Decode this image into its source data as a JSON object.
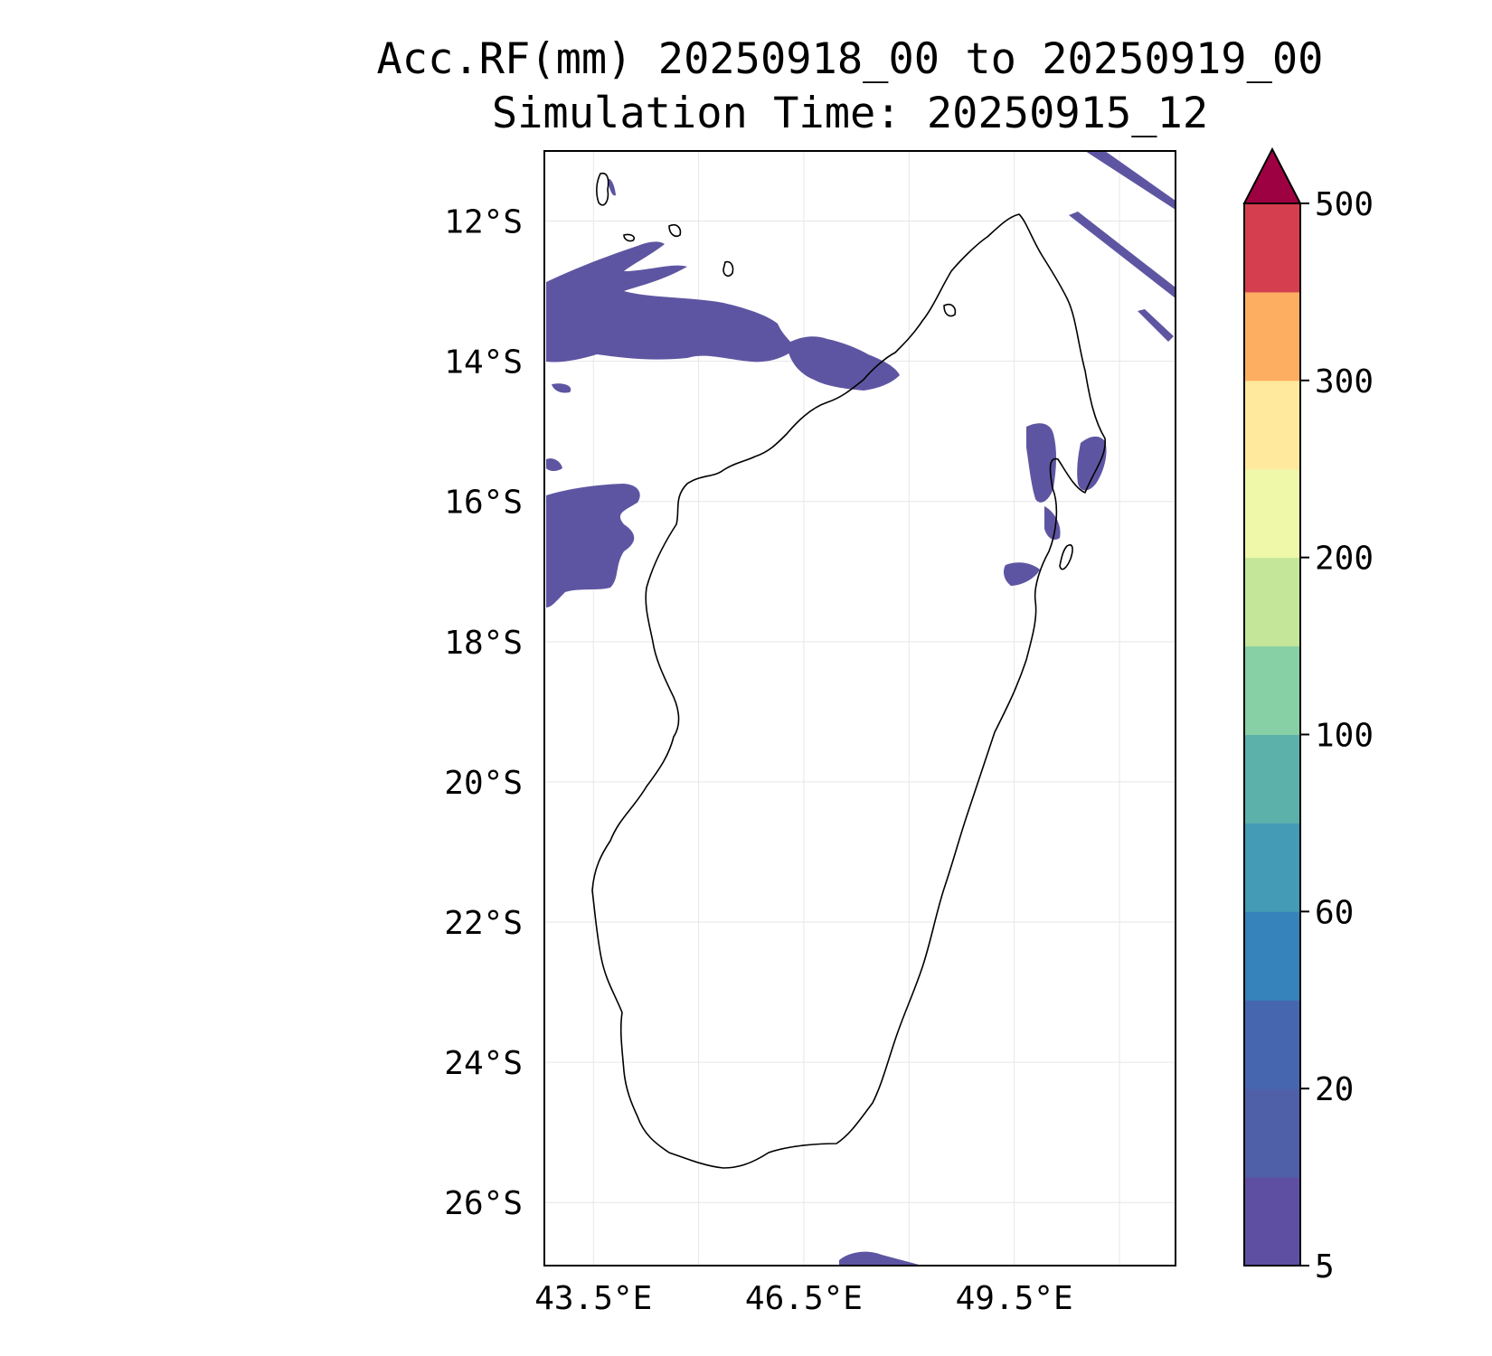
{
  "title": {
    "line1": "Acc.RF(mm) 20250918_00 to 20250919_00",
    "line2": "Simulation Time: 20250915_12"
  },
  "map": {
    "lon_range": [
      42.8,
      51.8
    ],
    "lat_range": [
      -26.9,
      -11.0
    ],
    "x_ticks": [
      {
        "value": 43.5,
        "label": "43.5°E"
      },
      {
        "value": 46.5,
        "label": "46.5°E"
      },
      {
        "value": 49.5,
        "label": "49.5°E"
      }
    ],
    "y_ticks": [
      {
        "value": -12,
        "label": "12°S"
      },
      {
        "value": -14,
        "label": "14°S"
      },
      {
        "value": -16,
        "label": "16°S"
      },
      {
        "value": -18,
        "label": "18°S"
      },
      {
        "value": -20,
        "label": "20°S"
      },
      {
        "value": -22,
        "label": "22°S"
      },
      {
        "value": -24,
        "label": "24°S"
      },
      {
        "value": -26,
        "label": "26°S"
      }
    ],
    "grid_lons": [
      43.5,
      45.0,
      46.5,
      48.0,
      49.5,
      51.0
    ],
    "grid_lats": [
      -12,
      -14,
      -16,
      -18,
      -20,
      -22,
      -24,
      -26
    ],
    "gridlines": true,
    "coastline_color": "#000000",
    "rain_color": "#5e55a2"
  },
  "colorbar": {
    "extend": "max",
    "extend_color": "#9e0142",
    "levels": [
      5,
      10,
      20,
      40,
      60,
      80,
      100,
      150,
      200,
      250,
      300,
      400,
      500
    ],
    "colors": [
      "#5e4fa2",
      "#4f5fa8",
      "#4667b0",
      "#3682ba",
      "#439bb5",
      "#5cb1aa",
      "#87cfa4",
      "#c3e699",
      "#eef8a8",
      "#fee99d",
      "#fdae61",
      "#d53e4f"
    ],
    "tick_labels": [
      {
        "value": 5,
        "label": "5"
      },
      {
        "value": 20,
        "label": "20"
      },
      {
        "value": 60,
        "label": "60"
      },
      {
        "value": 100,
        "label": "100"
      },
      {
        "value": 200,
        "label": "200"
      },
      {
        "value": 300,
        "label": "300"
      },
      {
        "value": 500,
        "label": "500"
      }
    ]
  }
}
